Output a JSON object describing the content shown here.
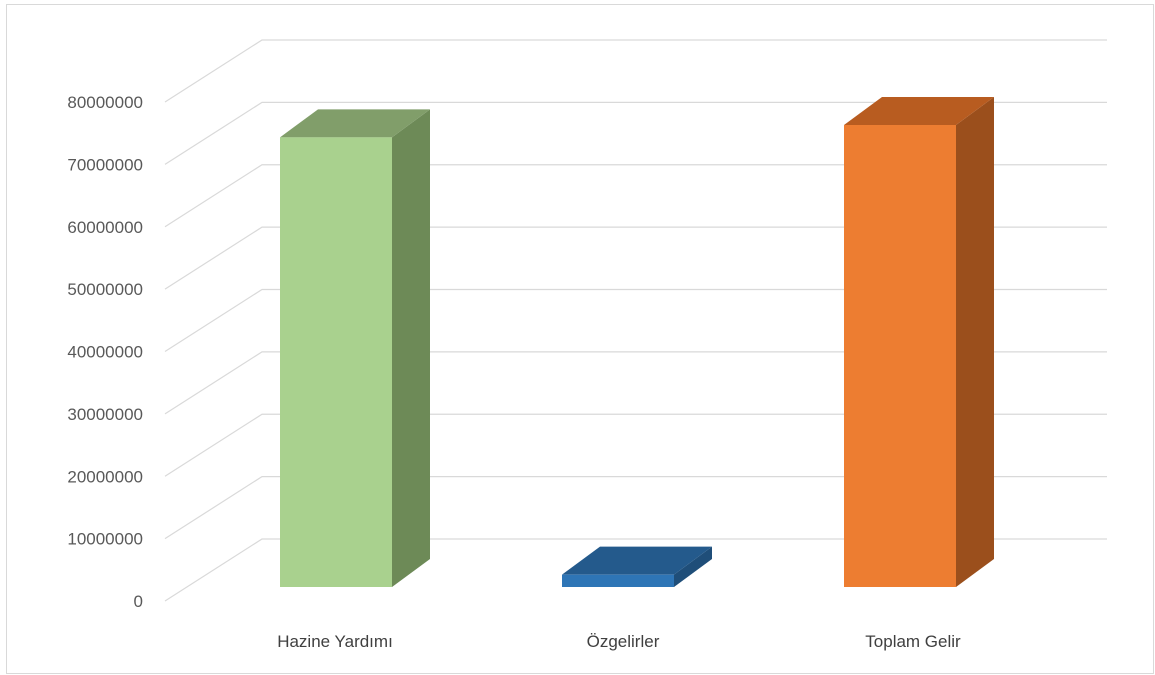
{
  "chart_data": {
    "type": "bar",
    "title": "",
    "xlabel": "",
    "ylabel": "",
    "categories": [
      "Hazine Yardımı",
      "Özgelirler",
      "Toplam Gelir"
    ],
    "values": [
      73000000,
      2000000,
      75000000
    ],
    "ylim": [
      0,
      80000000
    ],
    "yticks": [
      "0",
      "10000000",
      "20000000",
      "30000000",
      "40000000",
      "50000000",
      "60000000",
      "70000000",
      "80000000"
    ],
    "grid": true,
    "legend": "none",
    "style": "3d-column",
    "colors": [
      {
        "front": "#a9d18e",
        "side": "#6d8a57",
        "top": "#819e6a"
      },
      {
        "front": "#2e75b6",
        "side": "#1f4e79",
        "top": "#245a8c"
      },
      {
        "front": "#ed7d31",
        "side": "#9b4f1c",
        "top": "#b85c20"
      }
    ]
  }
}
